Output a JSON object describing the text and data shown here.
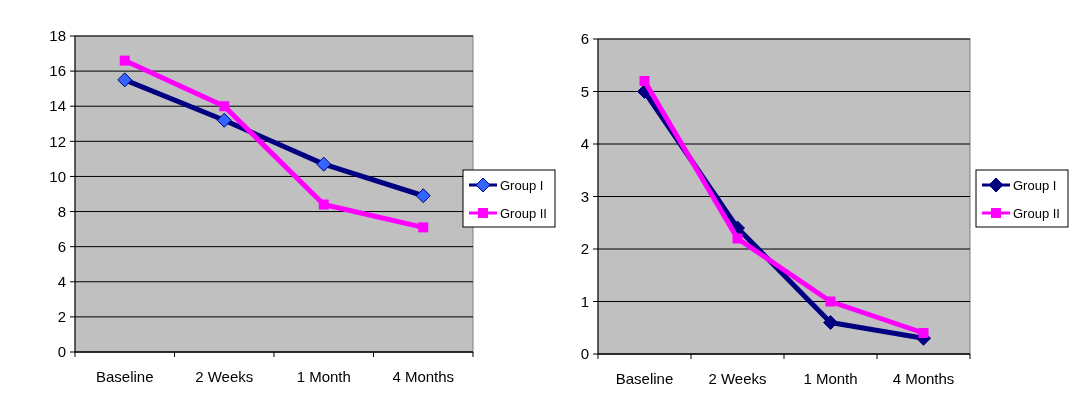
{
  "chart_data": [
    {
      "type": "line",
      "categories": [
        "Baseline",
        "2 Weeks",
        "1 Month",
        "4 Months"
      ],
      "ylim": [
        0,
        18
      ],
      "yticks": [
        0,
        2,
        4,
        6,
        8,
        10,
        12,
        14,
        16,
        18
      ],
      "grid": "y",
      "legend": "right",
      "series": [
        {
          "name": "Group I",
          "color": "#000080",
          "marker": "diamond",
          "values": [
            15.5,
            13.2,
            10.7,
            8.9
          ]
        },
        {
          "name": "Group II",
          "color": "#ff00ff",
          "marker": "square",
          "values": [
            16.6,
            14.0,
            8.4,
            7.1
          ]
        }
      ]
    },
    {
      "type": "line",
      "categories": [
        "Baseline",
        "2 Weeks",
        "1 Month",
        "4 Months"
      ],
      "ylim": [
        0,
        6
      ],
      "yticks": [
        0,
        1,
        2,
        3,
        4,
        5,
        6
      ],
      "grid": "y",
      "legend": "right",
      "series": [
        {
          "name": "Group I",
          "color": "#000080",
          "marker": "diamond",
          "values": [
            5.0,
            2.4,
            0.6,
            0.3
          ]
        },
        {
          "name": "Group II",
          "color": "#ff00ff",
          "marker": "square",
          "values": [
            5.2,
            2.2,
            1.0,
            0.4
          ]
        }
      ]
    }
  ]
}
